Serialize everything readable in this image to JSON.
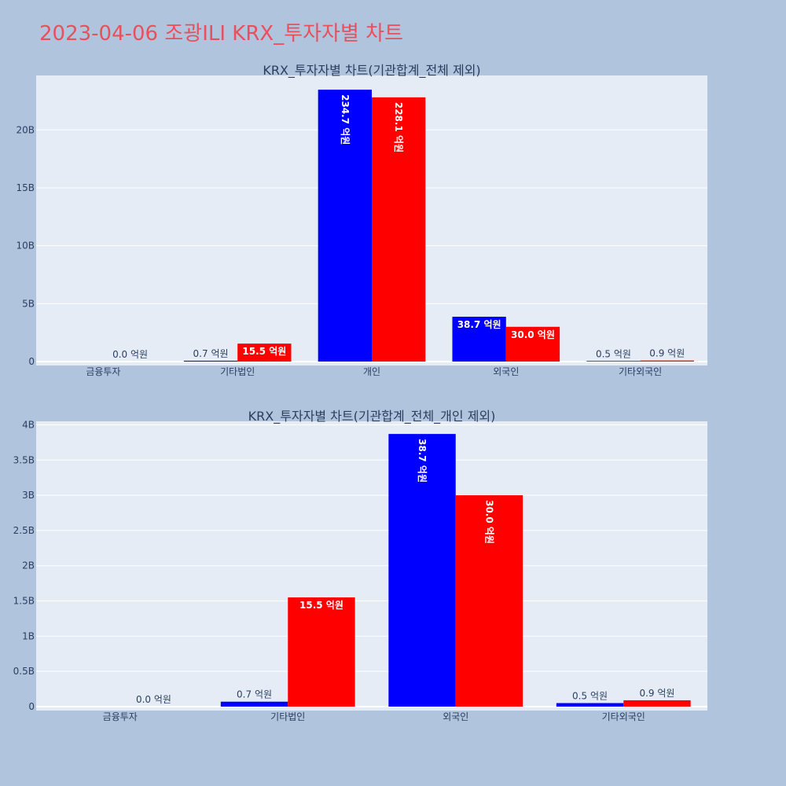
{
  "page": {
    "title": "2023-04-06 조광ILI KRX_투자자별 차트"
  },
  "colors": {
    "series_a": "#0000ff",
    "series_b": "#ff0000",
    "plot_bg": "#e5ecf6",
    "page_bg": "#b0c4de",
    "title": "#e8505b"
  },
  "chart_data": [
    {
      "type": "bar",
      "title": "KRX_투자자별 차트(기관합계_전체 제외)",
      "categories": [
        "금융투자",
        "기타법인",
        "개인",
        "외국인",
        "기타외국인"
      ],
      "series": [
        {
          "color": "#0000ff",
          "values": [
            0,
            70000000,
            23470000000,
            3870000000,
            50000000
          ],
          "labels": [
            "",
            "0.7 억원",
            "234.7 억원",
            "38.7 억원",
            "0.5 억원"
          ]
        },
        {
          "color": "#ff0000",
          "values": [
            0,
            1550000000,
            22810000000,
            3000000000,
            90000000
          ],
          "labels": [
            "0.0 억원",
            "15.5 억원",
            "228.1 억원",
            "30.0 억원",
            "0.9 억원"
          ]
        }
      ],
      "ylim": [
        0,
        24700000000
      ],
      "yticks": [
        0,
        5000000000,
        10000000000,
        15000000000,
        20000000000
      ],
      "yticklabels": [
        "0",
        "5B",
        "10B",
        "15B",
        "20B"
      ],
      "grid": true,
      "xlabel": "",
      "ylabel": ""
    },
    {
      "type": "bar",
      "title": "KRX_투자자별 차트(기관합계_전체_개인 제외)",
      "categories": [
        "금융투자",
        "기타법인",
        "외국인",
        "기타외국인"
      ],
      "series": [
        {
          "color": "#0000ff",
          "values": [
            0,
            70000000,
            3870000000,
            50000000
          ],
          "labels": [
            "",
            "0.7 억원",
            "38.7 억원",
            "0.5 억원"
          ]
        },
        {
          "color": "#ff0000",
          "values": [
            0,
            1550000000,
            3000000000,
            90000000
          ],
          "labels": [
            "0.0 억원",
            "15.5 억원",
            "30.0 억원",
            "0.9 억원"
          ]
        }
      ],
      "ylim": [
        0,
        4050000000
      ],
      "yticks": [
        0,
        500000000,
        1000000000,
        1500000000,
        2000000000,
        2500000000,
        3000000000,
        3500000000,
        4000000000
      ],
      "yticklabels": [
        "0",
        "0.5B",
        "1B",
        "1.5B",
        "2B",
        "2.5B",
        "3B",
        "3.5B",
        "4B"
      ],
      "grid": true,
      "xlabel": "",
      "ylabel": ""
    }
  ]
}
